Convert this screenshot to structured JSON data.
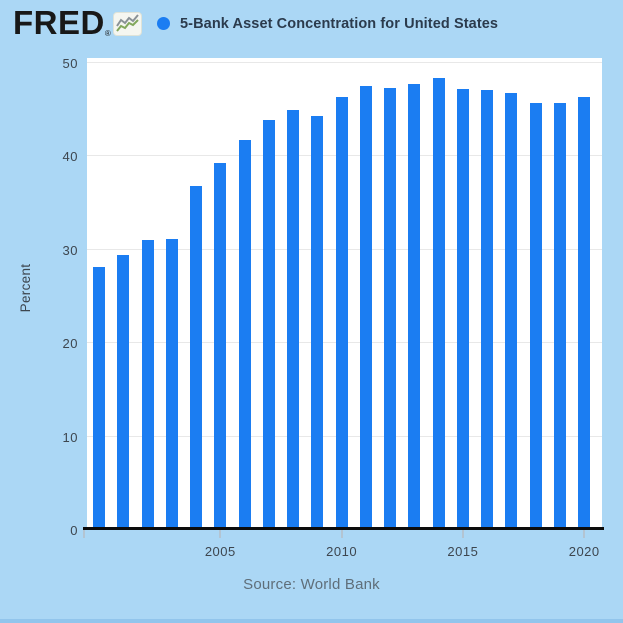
{
  "header": {
    "logo_text": "FRED",
    "registered_mark": "®"
  },
  "colors": {
    "background": "#abd7f5",
    "bar_blue": "#1b7df2",
    "legend_dot_blue": "#1b7df2",
    "plot_background": "#ffffff",
    "gridline": "#e8e8e8",
    "axis_line": "#0c0c0c",
    "title_text": "#2b3b4d",
    "axis_text": "#3d464f",
    "source_text": "#5f6e79",
    "bottom_edge": "#92c5ec"
  },
  "chart_data": {
    "type": "bar",
    "title": "5-Bank Asset Concentration for United States",
    "ylabel": "Percent",
    "xlabel": "",
    "ylim": [
      0,
      50
    ],
    "y_ticks": [
      0,
      10,
      20,
      30,
      40,
      50
    ],
    "x_ticks": [
      2005,
      2010,
      2015,
      2020
    ],
    "grid": true,
    "legend_position": "top",
    "source": "Source: World Bank",
    "categories": [
      2000,
      2001,
      2002,
      2003,
      2004,
      2005,
      2006,
      2007,
      2008,
      2009,
      2010,
      2011,
      2012,
      2013,
      2014,
      2015,
      2016,
      2017,
      2018,
      2019,
      2020
    ],
    "values": [
      28.0,
      29.3,
      30.9,
      31.0,
      36.7,
      39.2,
      41.6,
      43.8,
      44.9,
      44.2,
      46.2,
      47.4,
      47.2,
      47.6,
      48.3,
      47.1,
      47.0,
      46.7,
      45.6,
      45.6,
      46.2
    ]
  }
}
